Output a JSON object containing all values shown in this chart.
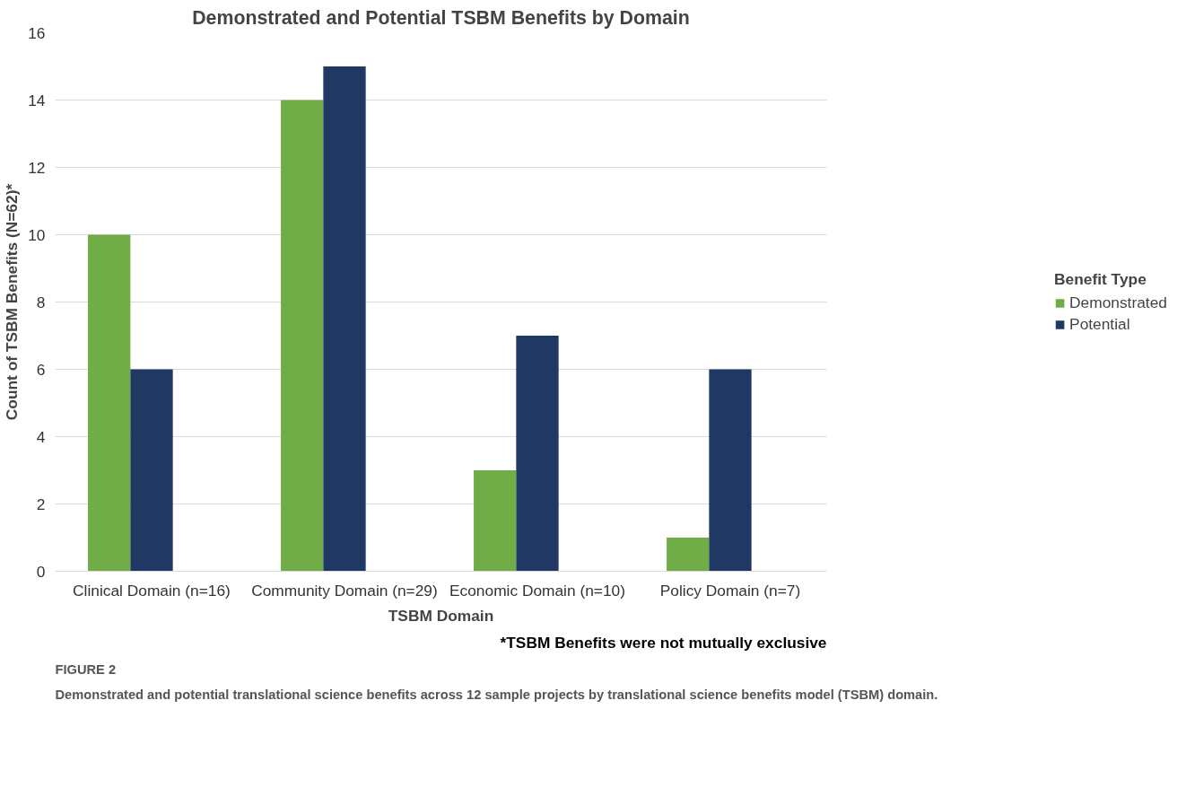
{
  "chart_data": {
    "type": "bar",
    "title": "Demonstrated and Potential TSBM Benefits by Domain",
    "xlabel": "TSBM Domain",
    "ylabel": "Count of TSBM Benefits (N=62)*",
    "legend_title": "Benefit Type",
    "categories": [
      "Clinical Domain (n=16)",
      "Community Domain (n=29)",
      "Economic Domain (n=10)",
      "Policy Domain (n=7)"
    ],
    "series": [
      {
        "name": "Demonstrated",
        "color": "#70ad47",
        "values": [
          10,
          14,
          3,
          1
        ]
      },
      {
        "name": "Potential",
        "color": "#203864",
        "values": [
          6,
          15,
          7,
          6
        ]
      }
    ],
    "ylim": [
      0,
      16
    ],
    "yticks": [
      0,
      2,
      4,
      6,
      8,
      10,
      12,
      14,
      16
    ],
    "grid": "y",
    "legend": "right",
    "annotations": [
      "*TSBM Benefits were not mutually exclusive",
      "FIGURE 2",
      "Demonstrated and potential translational science benefits across 12 sample projects by translational science benefits model (TSBM) domain."
    ]
  }
}
